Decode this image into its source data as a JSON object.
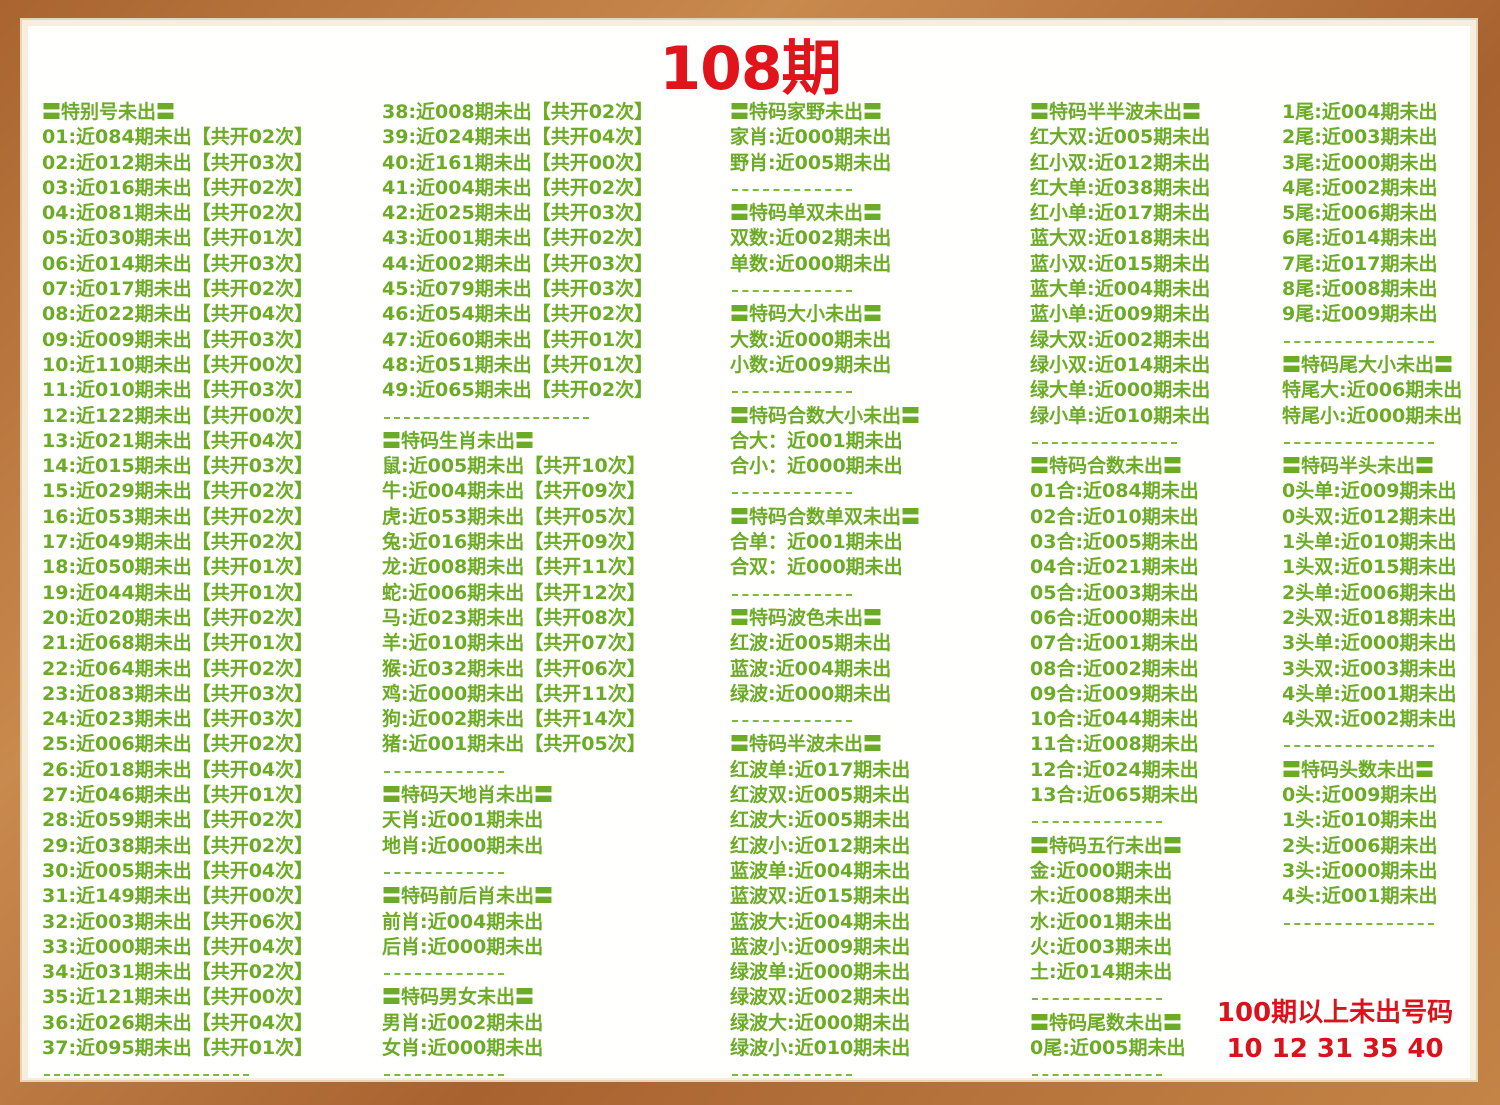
{
  "title": "108期",
  "colors": {
    "text_green": "#6bab25",
    "title_red": "#e0141a",
    "frame_wood": "#b5733d"
  },
  "columns": [
    [
      {
        "type": "heading",
        "text": "〓特别号未出〓"
      },
      {
        "type": "item",
        "text": "01:近084期未出【共开02次】"
      },
      {
        "type": "item",
        "text": "02:近012期未出【共开03次】"
      },
      {
        "type": "item",
        "text": "03:近016期未出【共开02次】"
      },
      {
        "type": "item",
        "text": "04:近081期未出【共开02次】"
      },
      {
        "type": "item",
        "text": "05:近030期未出【共开01次】"
      },
      {
        "type": "item",
        "text": "06:近014期未出【共开03次】"
      },
      {
        "type": "item",
        "text": "07:近017期未出【共开02次】"
      },
      {
        "type": "item",
        "text": "08:近022期未出【共开04次】"
      },
      {
        "type": "item",
        "text": "09:近009期未出【共开03次】"
      },
      {
        "type": "item",
        "text": "10:近110期未出【共开00次】"
      },
      {
        "type": "item",
        "text": "11:近010期未出【共开03次】"
      },
      {
        "type": "item",
        "text": "12:近122期未出【共开00次】"
      },
      {
        "type": "item",
        "text": "13:近021期未出【共开04次】"
      },
      {
        "type": "item",
        "text": "14:近015期未出【共开03次】"
      },
      {
        "type": "item",
        "text": "15:近029期未出【共开02次】"
      },
      {
        "type": "item",
        "text": "16:近053期未出【共开02次】"
      },
      {
        "type": "item",
        "text": "17:近049期未出【共开02次】"
      },
      {
        "type": "item",
        "text": "18:近050期未出【共开01次】"
      },
      {
        "type": "item",
        "text": "19:近044期未出【共开01次】"
      },
      {
        "type": "item",
        "text": "20:近020期未出【共开02次】"
      },
      {
        "type": "item",
        "text": "21:近068期未出【共开01次】"
      },
      {
        "type": "item",
        "text": "22:近064期未出【共开02次】"
      },
      {
        "type": "item",
        "text": "23:近083期未出【共开03次】"
      },
      {
        "type": "item",
        "text": "24:近023期未出【共开03次】"
      },
      {
        "type": "item",
        "text": "25:近006期未出【共开02次】"
      },
      {
        "type": "item",
        "text": "26:近018期未出【共开04次】"
      },
      {
        "type": "item",
        "text": "27:近046期未出【共开01次】"
      },
      {
        "type": "item",
        "text": "28:近059期未出【共开02次】"
      },
      {
        "type": "item",
        "text": "29:近038期未出【共开02次】"
      },
      {
        "type": "item",
        "text": "30:近005期未出【共开04次】"
      },
      {
        "type": "item",
        "text": "31:近149期未出【共开00次】"
      },
      {
        "type": "item",
        "text": "32:近003期未出【共开06次】"
      },
      {
        "type": "item",
        "text": "33:近000期未出【共开04次】"
      },
      {
        "type": "item",
        "text": "34:近031期未出【共开02次】"
      },
      {
        "type": "item",
        "text": "35:近121期未出【共开00次】"
      },
      {
        "type": "item",
        "text": "36:近026期未出【共开04次】"
      },
      {
        "type": "item",
        "text": "37:近095期未出【共开01次】"
      },
      {
        "type": "divider"
      }
    ],
    [
      {
        "type": "item",
        "text": "38:近008期未出【共开02次】"
      },
      {
        "type": "item",
        "text": "39:近024期未出【共开04次】"
      },
      {
        "type": "item",
        "text": "40:近161期未出【共开00次】"
      },
      {
        "type": "item",
        "text": "41:近004期未出【共开02次】"
      },
      {
        "type": "item",
        "text": "42:近025期未出【共开03次】"
      },
      {
        "type": "item",
        "text": "43:近001期未出【共开02次】"
      },
      {
        "type": "item",
        "text": "44:近002期未出【共开03次】"
      },
      {
        "type": "item",
        "text": "45:近079期未出【共开03次】"
      },
      {
        "type": "item",
        "text": "46:近054期未出【共开02次】"
      },
      {
        "type": "item",
        "text": "47:近060期未出【共开01次】"
      },
      {
        "type": "item",
        "text": "48:近051期未出【共开01次】"
      },
      {
        "type": "item",
        "text": "49:近065期未出【共开02次】"
      },
      {
        "type": "divider"
      },
      {
        "type": "heading",
        "text": "〓特码生肖未出〓"
      },
      {
        "type": "item",
        "text": "鼠:近005期未出【共开10次】"
      },
      {
        "type": "item",
        "text": "牛:近004期未出【共开09次】"
      },
      {
        "type": "item",
        "text": "虎:近053期未出【共开05次】"
      },
      {
        "type": "item",
        "text": "兔:近016期未出【共开09次】"
      },
      {
        "type": "item",
        "text": "龙:近008期未出【共开11次】"
      },
      {
        "type": "item",
        "text": "蛇:近006期未出【共开12次】"
      },
      {
        "type": "item",
        "text": "马:近023期未出【共开08次】"
      },
      {
        "type": "item",
        "text": "羊:近010期未出【共开07次】"
      },
      {
        "type": "item",
        "text": "猴:近032期未出【共开06次】"
      },
      {
        "type": "item",
        "text": "鸡:近000期未出【共开11次】"
      },
      {
        "type": "item",
        "text": "狗:近002期未出【共开14次】"
      },
      {
        "type": "item",
        "text": "猪:近001期未出【共开05次】"
      },
      {
        "type": "divider"
      },
      {
        "type": "heading",
        "text": "〓特码天地肖未出〓"
      },
      {
        "type": "item",
        "text": "天肖:近001期未出"
      },
      {
        "type": "item",
        "text": "地肖:近000期未出"
      },
      {
        "type": "divider"
      },
      {
        "type": "heading",
        "text": "〓特码前后肖未出〓"
      },
      {
        "type": "item",
        "text": "前肖:近004期未出"
      },
      {
        "type": "item",
        "text": "后肖:近000期未出"
      },
      {
        "type": "divider"
      },
      {
        "type": "heading",
        "text": "〓特码男女未出〓"
      },
      {
        "type": "item",
        "text": "男肖:近002期未出"
      },
      {
        "type": "item",
        "text": "女肖:近000期未出"
      },
      {
        "type": "divider"
      }
    ],
    [
      {
        "type": "heading",
        "text": "〓特码家野未出〓"
      },
      {
        "type": "item",
        "text": "家肖:近000期未出"
      },
      {
        "type": "item",
        "text": "野肖:近005期未出"
      },
      {
        "type": "divider"
      },
      {
        "type": "heading",
        "text": "〓特码单双未出〓"
      },
      {
        "type": "item",
        "text": "双数:近002期未出"
      },
      {
        "type": "item",
        "text": "单数:近000期未出"
      },
      {
        "type": "divider"
      },
      {
        "type": "heading",
        "text": "〓特码大小未出〓"
      },
      {
        "type": "item",
        "text": "大数:近000期未出"
      },
      {
        "type": "item",
        "text": "小数:近009期未出"
      },
      {
        "type": "divider"
      },
      {
        "type": "heading",
        "text": "〓特码合数大小未出〓"
      },
      {
        "type": "item",
        "text": "合大：近001期未出"
      },
      {
        "type": "item",
        "text": "合小：近000期未出"
      },
      {
        "type": "divider"
      },
      {
        "type": "heading",
        "text": "〓特码合数单双未出〓"
      },
      {
        "type": "item",
        "text": "合单：近001期未出"
      },
      {
        "type": "item",
        "text": "合双：近000期未出"
      },
      {
        "type": "divider"
      },
      {
        "type": "heading",
        "text": "〓特码波色未出〓"
      },
      {
        "type": "item",
        "text": "红波:近005期未出"
      },
      {
        "type": "item",
        "text": "蓝波:近004期未出"
      },
      {
        "type": "item",
        "text": "绿波:近000期未出"
      },
      {
        "type": "divider"
      },
      {
        "type": "heading",
        "text": "〓特码半波未出〓"
      },
      {
        "type": "item",
        "text": "红波单:近017期未出"
      },
      {
        "type": "item",
        "text": "红波双:近005期未出"
      },
      {
        "type": "item",
        "text": "红波大:近005期未出"
      },
      {
        "type": "item",
        "text": "红波小:近012期未出"
      },
      {
        "type": "item",
        "text": "蓝波单:近004期未出"
      },
      {
        "type": "item",
        "text": "蓝波双:近015期未出"
      },
      {
        "type": "item",
        "text": "蓝波大:近004期未出"
      },
      {
        "type": "item",
        "text": "蓝波小:近009期未出"
      },
      {
        "type": "item",
        "text": "绿波单:近000期未出"
      },
      {
        "type": "item",
        "text": "绿波双:近002期未出"
      },
      {
        "type": "item",
        "text": "绿波大:近000期未出"
      },
      {
        "type": "item",
        "text": "绿波小:近010期未出"
      },
      {
        "type": "divider"
      }
    ],
    [
      {
        "type": "heading",
        "text": "〓特码半半波未出〓"
      },
      {
        "type": "item",
        "text": "红大双:近005期未出"
      },
      {
        "type": "item",
        "text": "红小双:近012期未出"
      },
      {
        "type": "item",
        "text": "红大单:近038期未出"
      },
      {
        "type": "item",
        "text": "红小单:近017期未出"
      },
      {
        "type": "item",
        "text": "蓝大双:近018期未出"
      },
      {
        "type": "item",
        "text": "蓝小双:近015期未出"
      },
      {
        "type": "item",
        "text": "蓝大单:近004期未出"
      },
      {
        "type": "item",
        "text": "蓝小单:近009期未出"
      },
      {
        "type": "item",
        "text": "绿大双:近002期未出"
      },
      {
        "type": "item",
        "text": "绿小双:近014期未出"
      },
      {
        "type": "item",
        "text": "绿大单:近000期未出"
      },
      {
        "type": "item",
        "text": "绿小单:近010期未出"
      },
      {
        "type": "divider"
      },
      {
        "type": "heading",
        "text": "〓特码合数未出〓"
      },
      {
        "type": "item",
        "text": "01合:近084期未出"
      },
      {
        "type": "item",
        "text": "02合:近010期未出"
      },
      {
        "type": "item",
        "text": "03合:近005期未出"
      },
      {
        "type": "item",
        "text": "04合:近021期未出"
      },
      {
        "type": "item",
        "text": "05合:近003期未出"
      },
      {
        "type": "item",
        "text": "06合:近000期未出"
      },
      {
        "type": "item",
        "text": "07合:近001期未出"
      },
      {
        "type": "item",
        "text": "08合:近002期未出"
      },
      {
        "type": "item",
        "text": "09合:近009期未出"
      },
      {
        "type": "item",
        "text": "10合:近044期未出"
      },
      {
        "type": "item",
        "text": "11合:近008期未出"
      },
      {
        "type": "item",
        "text": "12合:近024期未出"
      },
      {
        "type": "item",
        "text": "13合:近065期未出"
      },
      {
        "type": "divider"
      },
      {
        "type": "heading",
        "text": "〓特码五行未出〓"
      },
      {
        "type": "item",
        "text": "金:近000期未出"
      },
      {
        "type": "item",
        "text": "木:近008期未出"
      },
      {
        "type": "item",
        "text": "水:近001期未出"
      },
      {
        "type": "item",
        "text": "火:近003期未出"
      },
      {
        "type": "item",
        "text": "土:近014期未出"
      },
      {
        "type": "divider"
      },
      {
        "type": "heading",
        "text": "〓特码尾数未出〓"
      },
      {
        "type": "item",
        "text": "0尾:近005期未出"
      },
      {
        "type": "divider"
      }
    ],
    [
      {
        "type": "item",
        "text": "1尾:近004期未出"
      },
      {
        "type": "item",
        "text": "2尾:近003期未出"
      },
      {
        "type": "item",
        "text": "3尾:近000期未出"
      },
      {
        "type": "item",
        "text": "4尾:近002期未出"
      },
      {
        "type": "item",
        "text": "5尾:近006期未出"
      },
      {
        "type": "item",
        "text": "6尾:近014期未出"
      },
      {
        "type": "item",
        "text": "7尾:近017期未出"
      },
      {
        "type": "item",
        "text": "8尾:近008期未出"
      },
      {
        "type": "item",
        "text": "9尾:近009期未出"
      },
      {
        "type": "divider"
      },
      {
        "type": "heading",
        "text": "〓特码尾大小未出〓"
      },
      {
        "type": "item",
        "text": "特尾大:近006期未出"
      },
      {
        "type": "item",
        "text": "特尾小:近000期未出"
      },
      {
        "type": "divider"
      },
      {
        "type": "heading",
        "text": "〓特码半头未出〓"
      },
      {
        "type": "item",
        "text": "0头单:近009期未出"
      },
      {
        "type": "item",
        "text": "0头双:近012期未出"
      },
      {
        "type": "item",
        "text": "1头单:近010期未出"
      },
      {
        "type": "item",
        "text": "1头双:近015期未出"
      },
      {
        "type": "item",
        "text": "2头单:近006期未出"
      },
      {
        "type": "item",
        "text": "2头双:近018期未出"
      },
      {
        "type": "item",
        "text": "3头单:近000期未出"
      },
      {
        "type": "item",
        "text": "3头双:近003期未出"
      },
      {
        "type": "item",
        "text": "4头单:近001期未出"
      },
      {
        "type": "item",
        "text": "4头双:近002期未出"
      },
      {
        "type": "divider"
      },
      {
        "type": "heading",
        "text": "〓特码头数未出〓"
      },
      {
        "type": "item",
        "text": "0头:近009期未出"
      },
      {
        "type": "item",
        "text": "1头:近010期未出"
      },
      {
        "type": "item",
        "text": "2头:近006期未出"
      },
      {
        "type": "item",
        "text": "3头:近000期未出"
      },
      {
        "type": "item",
        "text": "4头:近001期未出"
      },
      {
        "type": "divider"
      }
    ]
  ],
  "note": {
    "label": "100期以上未出号码",
    "numbers": "10 12 31 35 40"
  }
}
